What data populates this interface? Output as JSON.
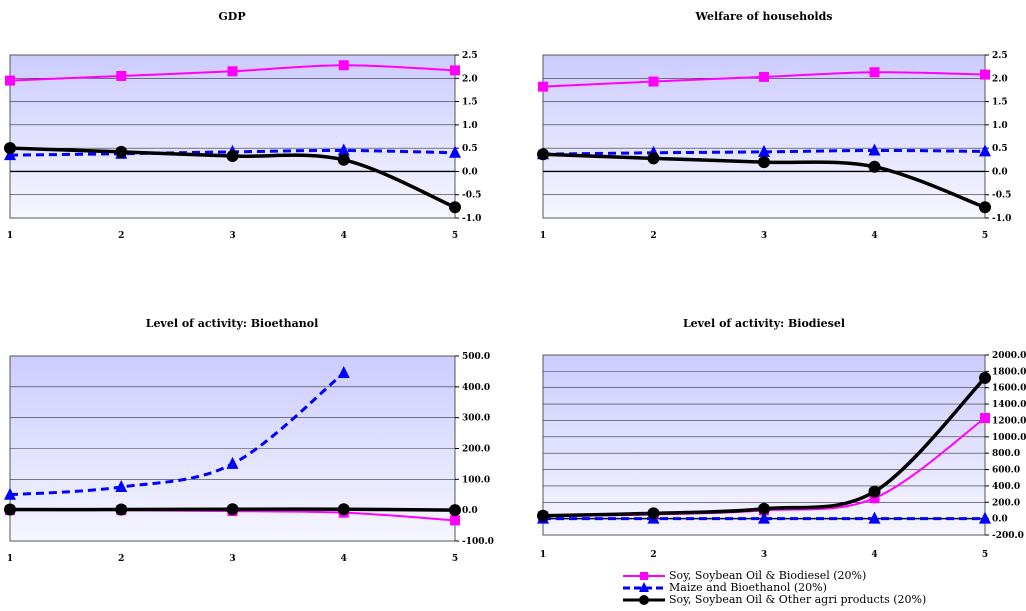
{
  "series_names": [
    "Soy, Soybean Oil & Biodiesel (20%)",
    "Maize and Bioethanol (20%)",
    "Soy, Soybean Oil & Other agri products (20%)"
  ],
  "series_colors": [
    "#ff00ff",
    "#0000ff",
    "#000000"
  ],
  "series_styles": [
    "solid-square",
    "dashed-triangle",
    "solid-circle-thick"
  ],
  "chart_data": [
    {
      "type": "line",
      "title": "GDP",
      "x": [
        1,
        2,
        3,
        4,
        5
      ],
      "ylim": [
        -1.0,
        2.5
      ],
      "yticks": [
        "2.5",
        "2.0",
        "1.5",
        "1.0",
        "0.5",
        "0.0",
        "-0.5",
        "-1.0"
      ],
      "ytick_values": [
        2.5,
        2.0,
        1.5,
        1.0,
        0.5,
        0.0,
        -0.5,
        -1.0
      ],
      "series": [
        {
          "name": "Soy, Soybean Oil & Biodiesel (20%)",
          "values": [
            1.95,
            2.05,
            2.15,
            2.28,
            2.17
          ]
        },
        {
          "name": "Maize and Bioethanol (20%)",
          "values": [
            0.35,
            0.38,
            0.42,
            0.45,
            0.4
          ]
        },
        {
          "name": "Soy, Soybean Oil & Other agri products (20%)",
          "values": [
            0.5,
            0.42,
            0.33,
            0.25,
            -0.77
          ]
        }
      ]
    },
    {
      "type": "line",
      "title": "Welfare of households",
      "x": [
        1,
        2,
        3,
        4,
        5
      ],
      "ylim": [
        -1.0,
        2.5
      ],
      "yticks": [
        "2.5",
        "2.0",
        "1.5",
        "1.0",
        "0.5",
        "0.0",
        "-0.5",
        "-1.0"
      ],
      "ytick_values": [
        2.5,
        2.0,
        1.5,
        1.0,
        0.5,
        0.0,
        -0.5,
        -1.0
      ],
      "series": [
        {
          "name": "Soy, Soybean Oil & Biodiesel (20%)",
          "values": [
            1.82,
            1.93,
            2.03,
            2.13,
            2.08
          ]
        },
        {
          "name": "Maize and Bioethanol (20%)",
          "values": [
            0.37,
            0.4,
            0.42,
            0.45,
            0.43
          ]
        },
        {
          "name": "Soy, Soybean Oil & Other agri products (20%)",
          "values": [
            0.37,
            0.28,
            0.2,
            0.1,
            -0.77
          ]
        }
      ]
    },
    {
      "type": "line",
      "title": "Level of activity: Bioethanol",
      "x": [
        1,
        2,
        3,
        4,
        5
      ],
      "ylim": [
        -100,
        500
      ],
      "yticks": [
        "500.0",
        "400.0",
        "300.0",
        "200.0",
        "100.0",
        "0.0",
        "-100.0"
      ],
      "ytick_values": [
        500,
        400,
        300,
        200,
        100,
        0,
        -100
      ],
      "series": [
        {
          "name": "Soy, Soybean Oil & Biodiesel (20%)",
          "values": [
            0,
            0,
            -3,
            -8,
            -33
          ]
        },
        {
          "name": "Maize and Bioethanol (20%)",
          "values": [
            50,
            75,
            150,
            445,
            null
          ]
        },
        {
          "name": "Soy, Soybean Oil & Other agri products (20%)",
          "values": [
            2,
            2,
            3,
            3,
            0
          ]
        }
      ]
    },
    {
      "type": "line",
      "title": "Level of activity: Biodiesel",
      "x": [
        1,
        2,
        3,
        4,
        5
      ],
      "ylim": [
        -200,
        2000
      ],
      "yticks": [
        "2000.0",
        "1800.0",
        "1600.0",
        "1400.0",
        "1200.0",
        "1000.0",
        "800.0",
        "600.0",
        "400.0",
        "200.0",
        "0.0",
        "-200.0"
      ],
      "ytick_values": [
        2000,
        1800,
        1600,
        1400,
        1200,
        1000,
        800,
        600,
        400,
        200,
        0,
        -200
      ],
      "series": [
        {
          "name": "Soy, Soybean Oil & Biodiesel (20%)",
          "values": [
            30,
            50,
            100,
            250,
            1230
          ]
        },
        {
          "name": "Maize and Bioethanol (20%)",
          "values": [
            0,
            0,
            0,
            0,
            0
          ]
        },
        {
          "name": "Soy, Soybean Oil & Other agri products (20%)",
          "values": [
            35,
            65,
            120,
            330,
            1720
          ]
        }
      ]
    }
  ]
}
